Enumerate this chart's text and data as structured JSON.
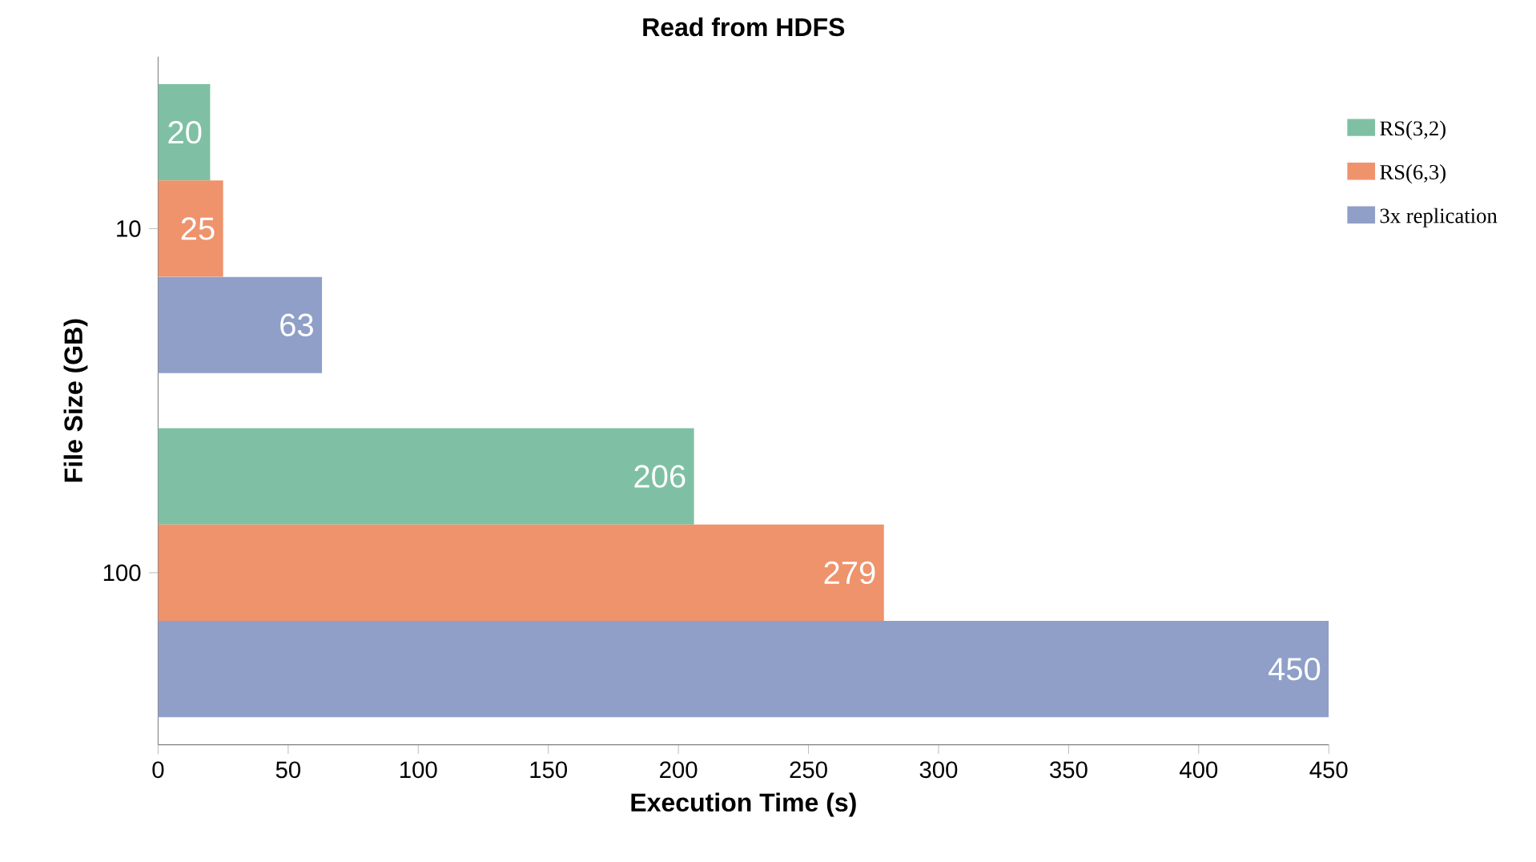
{
  "chart_data": {
    "type": "bar",
    "orientation": "horizontal",
    "title": "Read from HDFS",
    "xlabel": "Execution Time (s)",
    "ylabel": "File Size (GB)",
    "categories": [
      "10",
      "100"
    ],
    "series": [
      {
        "name": "RS(3,2)",
        "color": "#7fc0a4",
        "values": [
          20,
          206
        ]
      },
      {
        "name": "RS(6,3)",
        "color": "#ee936c",
        "values": [
          25,
          279
        ]
      },
      {
        "name": "3x replication",
        "color": "#8f9fc8",
        "values": [
          63,
          450
        ]
      }
    ],
    "xlim": [
      0,
      450
    ],
    "xticks": [
      0,
      50,
      100,
      150,
      200,
      250,
      300,
      350,
      400,
      450
    ],
    "data_labels": true,
    "legend": "right"
  }
}
